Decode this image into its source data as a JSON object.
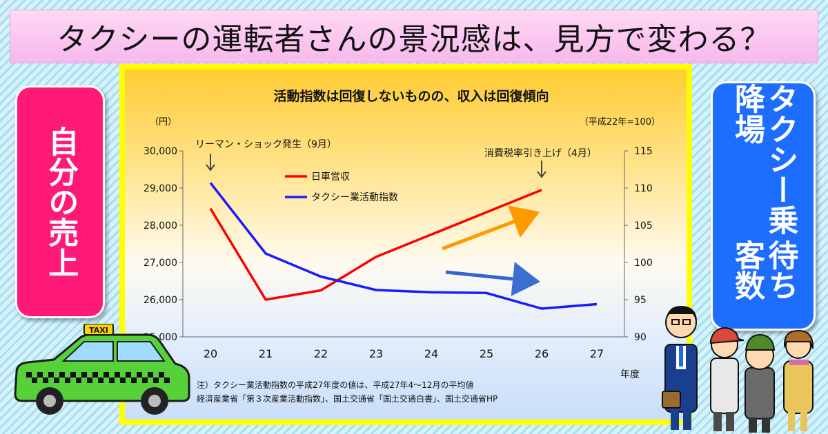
{
  "title": "タクシーの運転者さんの景況感は、見方で変わる？",
  "left_panel": "自分の売上",
  "right_panel": [
    "タクシー乗降場",
    "待ち客数"
  ],
  "taxi_sign": "TAXI",
  "chart_data": {
    "type": "line",
    "title": "活動指数は回復しないものの、収入は回復傾向",
    "left_unit": "（円）",
    "right_unit": "（平成22年=100）",
    "xlabel": "年度",
    "categories": [
      "20",
      "21",
      "22",
      "23",
      "24",
      "25",
      "26",
      "27"
    ],
    "y_left_ticks": [
      "30,000",
      "29,000",
      "28,000",
      "27,000",
      "26,000",
      "25,000"
    ],
    "y_left_range": [
      25000,
      30000
    ],
    "y_right_ticks": [
      "115",
      "110",
      "105",
      "100",
      "95",
      "90"
    ],
    "y_right_range": [
      90,
      115
    ],
    "series": [
      {
        "name": "日車営収",
        "axis": "left",
        "color": "#ff0000",
        "x": [
          "20",
          "21",
          "22",
          "23",
          "26"
        ],
        "values": [
          28450,
          26000,
          26250,
          27150,
          28950
        ]
      },
      {
        "name": "タクシー業活動指数",
        "axis": "right",
        "color": "#1a1aff",
        "x": [
          "20",
          "21",
          "22",
          "23",
          "24",
          "25",
          "26",
          "27"
        ],
        "values": [
          110.7,
          101.2,
          98.1,
          96.3,
          96.0,
          95.9,
          93.8,
          94.4
        ]
      }
    ],
    "annotations": [
      {
        "text": "リーマン・ショック発生（9月）",
        "at": "20"
      },
      {
        "text": "消費税率引き上げ（4月）",
        "at": "26"
      }
    ],
    "trend_arrows": [
      {
        "color": "#ff9900",
        "direction": "up"
      },
      {
        "color": "#3366cc",
        "direction": "down"
      }
    ],
    "notes": [
      "注）タクシー業活動指数の平成27年度の値は、平成27年4～12月の平均値",
      "経済産業省「第３次産業活動指数」、国土交通省「国土交通白書」、国土交通省HP"
    ]
  }
}
